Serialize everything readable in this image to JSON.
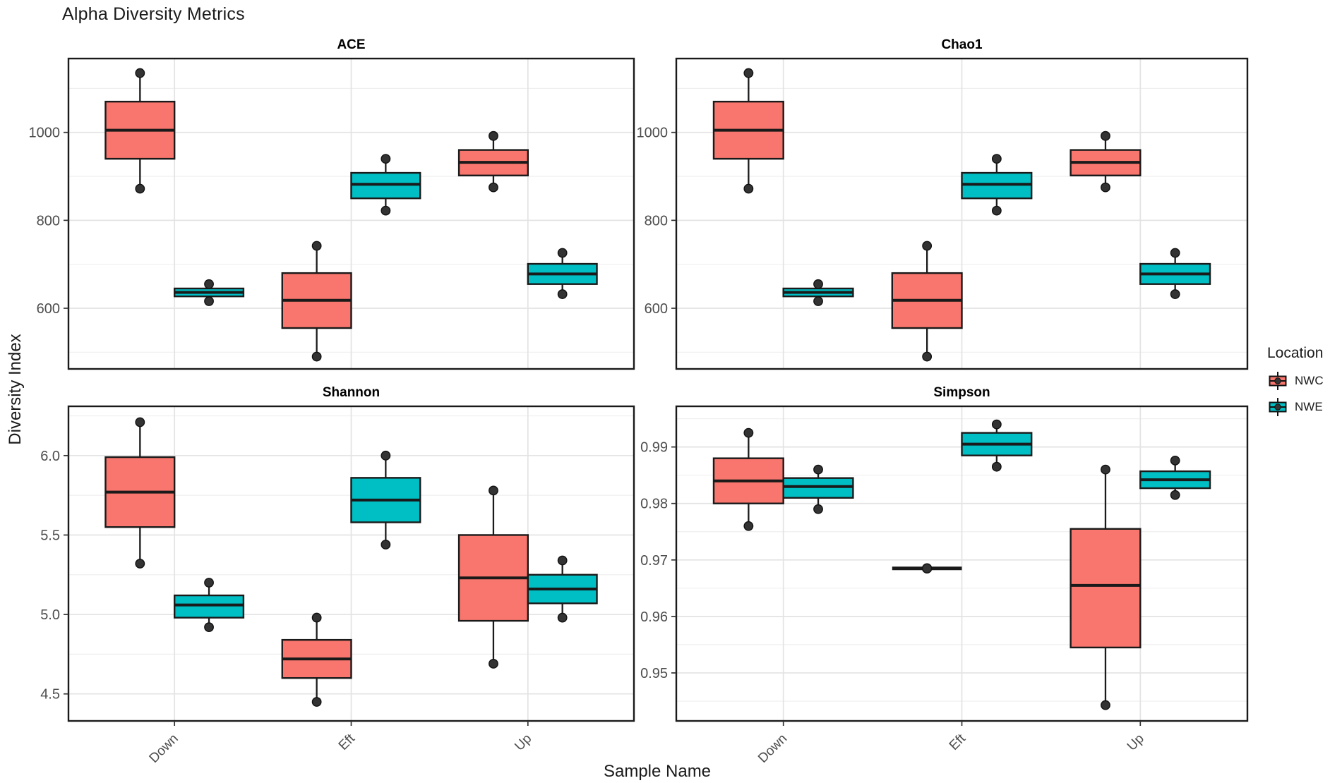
{
  "chart_data": {
    "type": "boxplot",
    "title": "Alpha Diversity Metrics",
    "xlabel": "Sample Name",
    "ylabel": "Diversity Index",
    "categories": [
      "Down",
      "Eft",
      "Up"
    ],
    "legend": {
      "title": "Location",
      "position": "right",
      "entries": [
        {
          "label": "NWC",
          "color": "#F8766D"
        },
        {
          "label": "NWE",
          "color": "#00BFC4"
        }
      ]
    },
    "style": {
      "panel_background": "#ffffff",
      "major_grid_color": "#e3e3e3",
      "minor_grid_color": "#efefef",
      "panel_border_color": "#1a1a1a",
      "box_outline_color": "#1a1a1a",
      "point_color": "#333333",
      "tick_text_color": "#4d4d4d",
      "grid": "on"
    },
    "facets": [
      {
        "name": "ACE",
        "ylim": [
          462,
          1168
        ],
        "yticks": [
          600,
          800,
          1000
        ],
        "ytick_labels": [
          "600",
          "800",
          "1000"
        ],
        "yminor": [
          500,
          700,
          900,
          1100
        ],
        "groups": [
          {
            "category": "Down",
            "series": "NWC",
            "min": 872,
            "q1": 940,
            "median": 1005,
            "q3": 1070,
            "max": 1135
          },
          {
            "category": "Down",
            "series": "NWE",
            "min": 616,
            "q1": 627,
            "median": 636,
            "q3": 645,
            "max": 655
          },
          {
            "category": "Eft",
            "series": "NWC",
            "min": 490,
            "q1": 555,
            "median": 618,
            "q3": 680,
            "max": 742
          },
          {
            "category": "Eft",
            "series": "NWE",
            "min": 822,
            "q1": 850,
            "median": 882,
            "q3": 908,
            "max": 940
          },
          {
            "category": "Up",
            "series": "NWC",
            "min": 875,
            "q1": 902,
            "median": 932,
            "q3": 960,
            "max": 992
          },
          {
            "category": "Up",
            "series": "NWE",
            "min": 632,
            "q1": 655,
            "median": 678,
            "q3": 701,
            "max": 726
          }
        ]
      },
      {
        "name": "Chao1",
        "ylim": [
          462,
          1168
        ],
        "yticks": [
          600,
          800,
          1000
        ],
        "ytick_labels": [
          "600",
          "800",
          "1000"
        ],
        "yminor": [
          500,
          700,
          900,
          1100
        ],
        "groups": [
          {
            "category": "Down",
            "series": "NWC",
            "min": 872,
            "q1": 940,
            "median": 1005,
            "q3": 1070,
            "max": 1135
          },
          {
            "category": "Down",
            "series": "NWE",
            "min": 616,
            "q1": 627,
            "median": 636,
            "q3": 645,
            "max": 655
          },
          {
            "category": "Eft",
            "series": "NWC",
            "min": 490,
            "q1": 555,
            "median": 618,
            "q3": 680,
            "max": 742
          },
          {
            "category": "Eft",
            "series": "NWE",
            "min": 822,
            "q1": 850,
            "median": 882,
            "q3": 908,
            "max": 940
          },
          {
            "category": "Up",
            "series": "NWC",
            "min": 875,
            "q1": 902,
            "median": 932,
            "q3": 960,
            "max": 992
          },
          {
            "category": "Up",
            "series": "NWE",
            "min": 632,
            "q1": 655,
            "median": 678,
            "q3": 701,
            "max": 726
          }
        ]
      },
      {
        "name": "Shannon",
        "ylim": [
          4.33,
          6.31
        ],
        "yticks": [
          4.5,
          5.0,
          5.5,
          6.0
        ],
        "ytick_labels": [
          "4.5",
          "5.0",
          "5.5",
          "6.0"
        ],
        "yminor": [
          4.75,
          5.25,
          5.75,
          6.25
        ],
        "groups": [
          {
            "category": "Down",
            "series": "NWC",
            "min": 5.32,
            "q1": 5.55,
            "median": 5.77,
            "q3": 5.99,
            "max": 6.21
          },
          {
            "category": "Down",
            "series": "NWE",
            "min": 4.92,
            "q1": 4.98,
            "median": 5.06,
            "q3": 5.12,
            "max": 5.2
          },
          {
            "category": "Eft",
            "series": "NWC",
            "min": 4.45,
            "q1": 4.6,
            "median": 4.72,
            "q3": 4.84,
            "max": 4.98
          },
          {
            "category": "Eft",
            "series": "NWE",
            "min": 5.44,
            "q1": 5.58,
            "median": 5.72,
            "q3": 5.86,
            "max": 6.0
          },
          {
            "category": "Up",
            "series": "NWC",
            "min": 4.69,
            "q1": 4.96,
            "median": 5.23,
            "q3": 5.5,
            "max": 5.78
          },
          {
            "category": "Up",
            "series": "NWE",
            "min": 4.98,
            "q1": 5.07,
            "median": 5.16,
            "q3": 5.25,
            "max": 5.34
          }
        ]
      },
      {
        "name": "Simpson",
        "ylim": [
          0.9415,
          0.9972
        ],
        "yticks": [
          0.95,
          0.96,
          0.97,
          0.98,
          0.99
        ],
        "ytick_labels": [
          "0.95",
          "0.96",
          "0.97",
          "0.98",
          "0.99"
        ],
        "yminor": [
          0.945,
          0.955,
          0.965,
          0.975,
          0.985,
          0.995
        ],
        "groups": [
          {
            "category": "Down",
            "series": "NWC",
            "min": 0.976,
            "q1": 0.98,
            "median": 0.984,
            "q3": 0.988,
            "max": 0.9925
          },
          {
            "category": "Down",
            "series": "NWE",
            "min": 0.979,
            "q1": 0.981,
            "median": 0.983,
            "q3": 0.9845,
            "max": 0.986
          },
          {
            "category": "Eft",
            "series": "NWC",
            "min": 0.9685,
            "q1": 0.9685,
            "median": 0.9685,
            "q3": 0.9685,
            "max": 0.9685
          },
          {
            "category": "Eft",
            "series": "NWE",
            "min": 0.9865,
            "q1": 0.9885,
            "median": 0.9905,
            "q3": 0.9925,
            "max": 0.994
          },
          {
            "category": "Up",
            "series": "NWC",
            "min": 0.9443,
            "q1": 0.9545,
            "median": 0.9655,
            "q3": 0.9755,
            "max": 0.986
          },
          {
            "category": "Up",
            "series": "NWE",
            "min": 0.9815,
            "q1": 0.9827,
            "median": 0.9842,
            "q3": 0.9857,
            "max": 0.9876
          }
        ]
      }
    ]
  }
}
